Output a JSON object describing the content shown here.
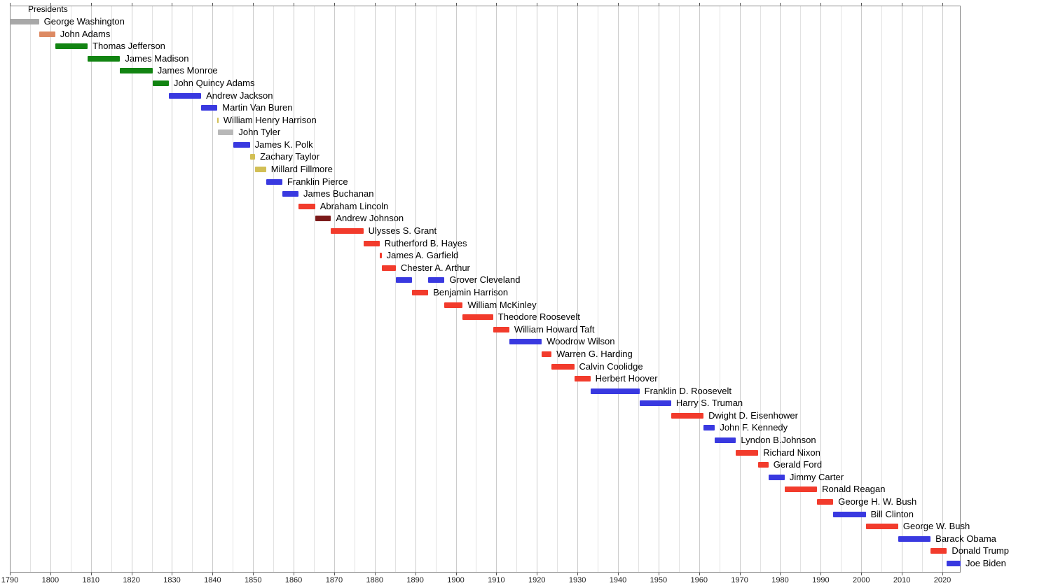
{
  "chart_data": {
    "type": "bar",
    "subtype": "gantt-timeline",
    "title": "Presidents",
    "xlabel": "",
    "ylabel": "",
    "grid": true,
    "legend": "none",
    "x_axis": {
      "min": 1790,
      "max": 2024.5,
      "tick_interval": 10,
      "minor_tick_interval": 5,
      "tick_labels": [
        "1790",
        "1800",
        "1810",
        "1820",
        "1830",
        "1840",
        "1850",
        "1860",
        "1870",
        "1880",
        "1890",
        "1900",
        "1910",
        "1920",
        "1930",
        "1940",
        "1950",
        "1960",
        "1970",
        "1980",
        "1990",
        "2000",
        "2010",
        "2020"
      ]
    },
    "party_colors": {
      "independent": "#a8a8a8",
      "unaffiliated": "#b8b8b8",
      "federalist": "#dd8a63",
      "democratic_republican": "#128412",
      "democratic": "#3939e0",
      "whig": "#d2bf55",
      "republican": "#f23b2c",
      "national_union": "#7b1a1a"
    },
    "presidents": [
      {
        "name": "George Washington",
        "party": "independent",
        "terms": [
          [
            1789.3,
            1797.2
          ]
        ]
      },
      {
        "name": "John Adams",
        "party": "federalist",
        "terms": [
          [
            1797.2,
            1801.2
          ]
        ]
      },
      {
        "name": "Thomas Jefferson",
        "party": "democratic_republican",
        "terms": [
          [
            1801.2,
            1809.2
          ]
        ]
      },
      {
        "name": "James Madison",
        "party": "democratic_republican",
        "terms": [
          [
            1809.2,
            1817.2
          ]
        ]
      },
      {
        "name": "James Monroe",
        "party": "democratic_republican",
        "terms": [
          [
            1817.2,
            1825.2
          ]
        ]
      },
      {
        "name": "John Quincy Adams",
        "party": "democratic_republican",
        "terms": [
          [
            1825.2,
            1829.2
          ]
        ]
      },
      {
        "name": "Andrew Jackson",
        "party": "democratic",
        "terms": [
          [
            1829.2,
            1837.2
          ]
        ]
      },
      {
        "name": "Martin Van Buren",
        "party": "democratic",
        "terms": [
          [
            1837.2,
            1841.2
          ]
        ]
      },
      {
        "name": "William Henry Harrison",
        "party": "whig",
        "terms": [
          [
            1841.2,
            1841.3
          ]
        ]
      },
      {
        "name": "John Tyler",
        "party": "unaffiliated",
        "terms": [
          [
            1841.3,
            1845.2
          ]
        ]
      },
      {
        "name": "James K. Polk",
        "party": "democratic",
        "terms": [
          [
            1845.2,
            1849.2
          ]
        ]
      },
      {
        "name": "Zachary Taylor",
        "party": "whig",
        "terms": [
          [
            1849.2,
            1850.5
          ]
        ]
      },
      {
        "name": "Millard Fillmore",
        "party": "whig",
        "terms": [
          [
            1850.5,
            1853.2
          ]
        ]
      },
      {
        "name": "Franklin Pierce",
        "party": "democratic",
        "terms": [
          [
            1853.2,
            1857.2
          ]
        ]
      },
      {
        "name": "James Buchanan",
        "party": "democratic",
        "terms": [
          [
            1857.2,
            1861.2
          ]
        ]
      },
      {
        "name": "Abraham Lincoln",
        "party": "republican",
        "terms": [
          [
            1861.2,
            1865.3
          ]
        ]
      },
      {
        "name": "Andrew Johnson",
        "party": "national_union",
        "terms": [
          [
            1865.3,
            1869.2
          ]
        ]
      },
      {
        "name": "Ulysses S. Grant",
        "party": "republican",
        "terms": [
          [
            1869.2,
            1877.2
          ]
        ]
      },
      {
        "name": "Rutherford B. Hayes",
        "party": "republican",
        "terms": [
          [
            1877.2,
            1881.2
          ]
        ]
      },
      {
        "name": "James A. Garfield",
        "party": "republican",
        "terms": [
          [
            1881.2,
            1881.7
          ]
        ]
      },
      {
        "name": "Chester A. Arthur",
        "party": "republican",
        "terms": [
          [
            1881.7,
            1885.2
          ]
        ]
      },
      {
        "name": "Grover Cleveland",
        "party": "democratic",
        "terms": [
          [
            1885.2,
            1889.2
          ],
          [
            1893.2,
            1897.2
          ]
        ]
      },
      {
        "name": "Benjamin Harrison",
        "party": "republican",
        "terms": [
          [
            1889.2,
            1893.2
          ]
        ]
      },
      {
        "name": "William McKinley",
        "party": "republican",
        "terms": [
          [
            1897.2,
            1901.7
          ]
        ]
      },
      {
        "name": "Theodore Roosevelt",
        "party": "republican",
        "terms": [
          [
            1901.7,
            1909.2
          ]
        ]
      },
      {
        "name": "William Howard Taft",
        "party": "republican",
        "terms": [
          [
            1909.2,
            1913.2
          ]
        ]
      },
      {
        "name": "Woodrow Wilson",
        "party": "democratic",
        "terms": [
          [
            1913.2,
            1921.2
          ]
        ]
      },
      {
        "name": "Warren G. Harding",
        "party": "republican",
        "terms": [
          [
            1921.2,
            1923.6
          ]
        ]
      },
      {
        "name": "Calvin Coolidge",
        "party": "republican",
        "terms": [
          [
            1923.6,
            1929.2
          ]
        ]
      },
      {
        "name": "Herbert Hoover",
        "party": "republican",
        "terms": [
          [
            1929.2,
            1933.2
          ]
        ]
      },
      {
        "name": "Franklin D. Roosevelt",
        "party": "democratic",
        "terms": [
          [
            1933.2,
            1945.3
          ]
        ]
      },
      {
        "name": "Harry S. Truman",
        "party": "democratic",
        "terms": [
          [
            1945.3,
            1953.1
          ]
        ]
      },
      {
        "name": "Dwight D. Eisenhower",
        "party": "republican",
        "terms": [
          [
            1953.1,
            1961.1
          ]
        ]
      },
      {
        "name": "John F. Kennedy",
        "party": "democratic",
        "terms": [
          [
            1961.1,
            1963.9
          ]
        ]
      },
      {
        "name": "Lyndon B.Johnson",
        "party": "democratic",
        "terms": [
          [
            1963.9,
            1969.1
          ]
        ]
      },
      {
        "name": "Richard Nixon",
        "party": "republican",
        "terms": [
          [
            1969.1,
            1974.6
          ]
        ]
      },
      {
        "name": "Gerald Ford",
        "party": "republican",
        "terms": [
          [
            1974.6,
            1977.1
          ]
        ]
      },
      {
        "name": "Jimmy Carter",
        "party": "democratic",
        "terms": [
          [
            1977.1,
            1981.1
          ]
        ]
      },
      {
        "name": "Ronald Reagan",
        "party": "republican",
        "terms": [
          [
            1981.1,
            1989.1
          ]
        ]
      },
      {
        "name": "George H. W. Bush",
        "party": "republican",
        "terms": [
          [
            1989.1,
            1993.1
          ]
        ]
      },
      {
        "name": "Bill Clinton",
        "party": "democratic",
        "terms": [
          [
            1993.1,
            2001.1
          ]
        ]
      },
      {
        "name": "George W. Bush",
        "party": "republican",
        "terms": [
          [
            2001.1,
            2009.1
          ]
        ]
      },
      {
        "name": "Barack Obama",
        "party": "democratic",
        "terms": [
          [
            2009.1,
            2017.1
          ]
        ]
      },
      {
        "name": "Donald Trump",
        "party": "republican",
        "terms": [
          [
            2017.1,
            2021.1
          ]
        ]
      },
      {
        "name": "Joe Biden",
        "party": "democratic",
        "terms": [
          [
            2021.1,
            2024.5
          ]
        ]
      }
    ]
  }
}
